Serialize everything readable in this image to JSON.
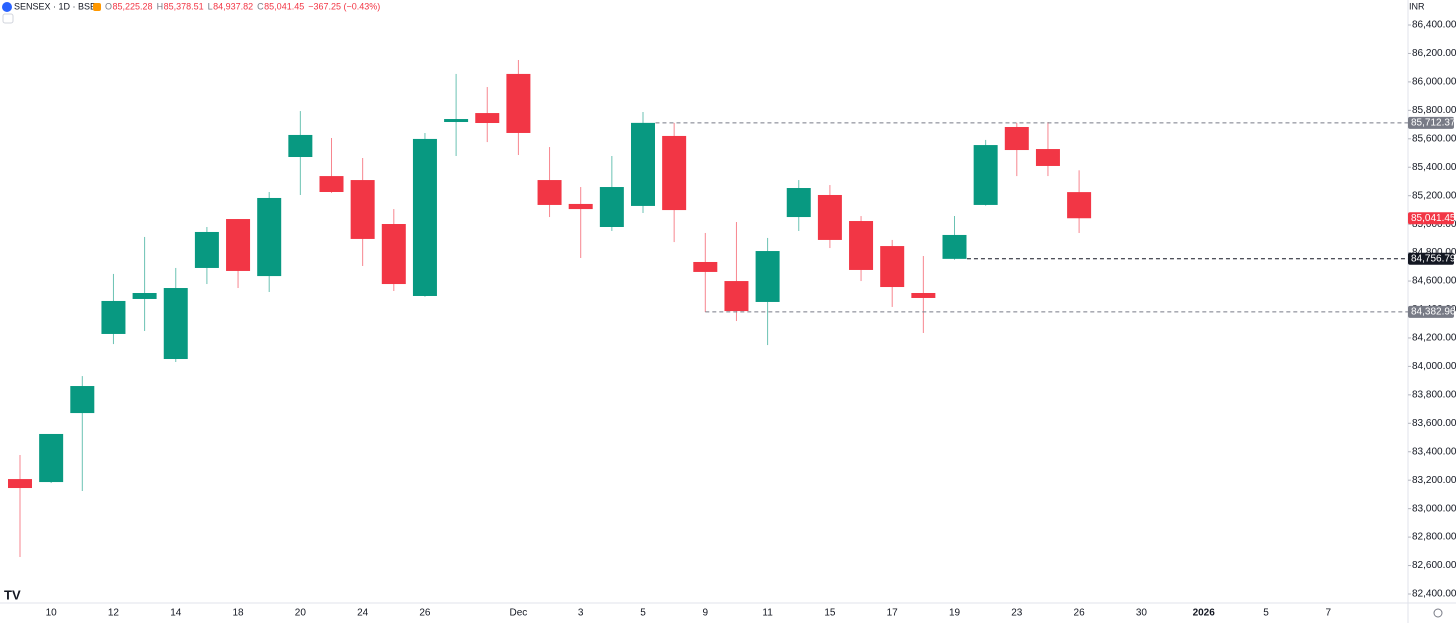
{
  "header": {
    "symbol": "SENSEX · 1D · BSE",
    "ohlc_labels": [
      "O",
      "H",
      "L",
      "C"
    ],
    "ohlc_values": [
      "85,225.28",
      "85,378.51",
      "84,937.82",
      "85,041.45"
    ],
    "change": "−367.25 (−0.43%)",
    "currency": "INR"
  },
  "chart_data": {
    "type": "candlestick",
    "categories": [
      null,
      "10",
      null,
      "12",
      null,
      "14",
      null,
      "18",
      null,
      "20",
      null,
      "24",
      null,
      "26",
      null,
      null,
      "Dec",
      null,
      "3",
      null,
      "5",
      null,
      "9",
      null,
      "11",
      null,
      "15",
      null,
      "17",
      null,
      "19",
      null,
      "23",
      null,
      "26",
      null,
      "30",
      null,
      "2026",
      null,
      "5",
      null,
      "7"
    ],
    "open": [
      83208,
      83187,
      83672,
      84228,
      84474,
      84052,
      84692,
      85036,
      84635,
      85472,
      85338,
      85310,
      85001,
      84495,
      85718,
      85781,
      86056,
      85310,
      85142,
      84980,
      85128,
      85620,
      84734,
      84600,
      84453,
      85050,
      85205,
      85022,
      84846,
      84516,
      84756,
      85135,
      85683,
      85528,
      85225.28,
      null,
      null,
      null,
      null,
      null,
      null,
      null,
      null
    ],
    "high": [
      83377,
      83525,
      83932,
      84650,
      84910,
      84692,
      84980,
      85036,
      85226,
      85795,
      85606,
      85465,
      85106,
      85641,
      86056,
      85964,
      86154,
      85542,
      85261,
      85479,
      85788,
      85712,
      84938,
      85015,
      84903,
      85310,
      85275,
      85057,
      84889,
      84776,
      85057,
      85592,
      85712,
      85718,
      85378.51,
      null,
      null,
      null,
      null,
      null,
      null,
      null,
      null
    ],
    "low": [
      82660,
      83180,
      83124,
      84157,
      84249,
      84031,
      84579,
      84551,
      84523,
      85205,
      85220,
      84706,
      84530,
      84490,
      85479,
      85577,
      85486,
      85050,
      84762,
      84952,
      85078,
      84874,
      84382,
      84319,
      84150,
      84952,
      84832,
      84600,
      84418,
      84235,
      84750,
      85130,
      85338,
      85338,
      84937.82,
      null,
      null,
      null,
      null,
      null,
      null,
      null,
      null
    ],
    "close": [
      83145,
      83525,
      83862,
      84460,
      84516,
      84551,
      84945,
      84671,
      85184,
      85627,
      85226,
      84896,
      84579,
      85599,
      85739,
      85711,
      85641,
      85135,
      85106,
      85261,
      85712,
      85099,
      84664,
      84389,
      84811,
      85254,
      84889,
      84678,
      84558,
      84481,
      84924,
      85556,
      85521,
      85409,
      85041.45,
      null,
      null,
      null,
      null,
      null,
      null,
      null,
      null
    ],
    "up_color": "#089981",
    "down_color": "#f23645",
    "ylim": [
      82400,
      86400
    ],
    "yticks": [
      {
        "value": 82400,
        "label": "82,400.00"
      },
      {
        "value": 82600,
        "label": "82,600.00"
      },
      {
        "value": 82800,
        "label": "82,800.00"
      },
      {
        "value": 83000,
        "label": "83,000.00"
      },
      {
        "value": 83200,
        "label": "83,200.00"
      },
      {
        "value": 83400,
        "label": "83,400.00"
      },
      {
        "value": 83600,
        "label": "83,600.00"
      },
      {
        "value": 83800,
        "label": "83,800.00"
      },
      {
        "value": 84000,
        "label": "84,000.00"
      },
      {
        "value": 84200,
        "label": "84,200.00"
      },
      {
        "value": 84400,
        "label": "84,400.00"
      },
      {
        "value": 84600,
        "label": "84,600.00"
      },
      {
        "value": 84800,
        "label": "84,800.00"
      },
      {
        "value": 85000,
        "label": "85,000.00"
      },
      {
        "value": 85200,
        "label": "85,200.00"
      },
      {
        "value": 85400,
        "label": "85,400.00"
      },
      {
        "value": 85600,
        "label": "85,600.00"
      },
      {
        "value": 85800,
        "label": "85,800.00"
      },
      {
        "value": 86000,
        "label": "86,000.00"
      },
      {
        "value": 86200,
        "label": "86,200.00"
      },
      {
        "value": 86400,
        "label": "86,400.00"
      }
    ],
    "price_lines": [
      {
        "value": 85712.37,
        "label": "85,712.37",
        "color": "#787b86"
      },
      {
        "value": 84756.79,
        "label": "84,756.79",
        "color": "#131722"
      },
      {
        "value": 84382.96,
        "label": "84,382.96",
        "color": "#787b86"
      }
    ],
    "last_price": {
      "value": 85041.45,
      "label": "85,041.45",
      "color": "#f23645"
    }
  }
}
